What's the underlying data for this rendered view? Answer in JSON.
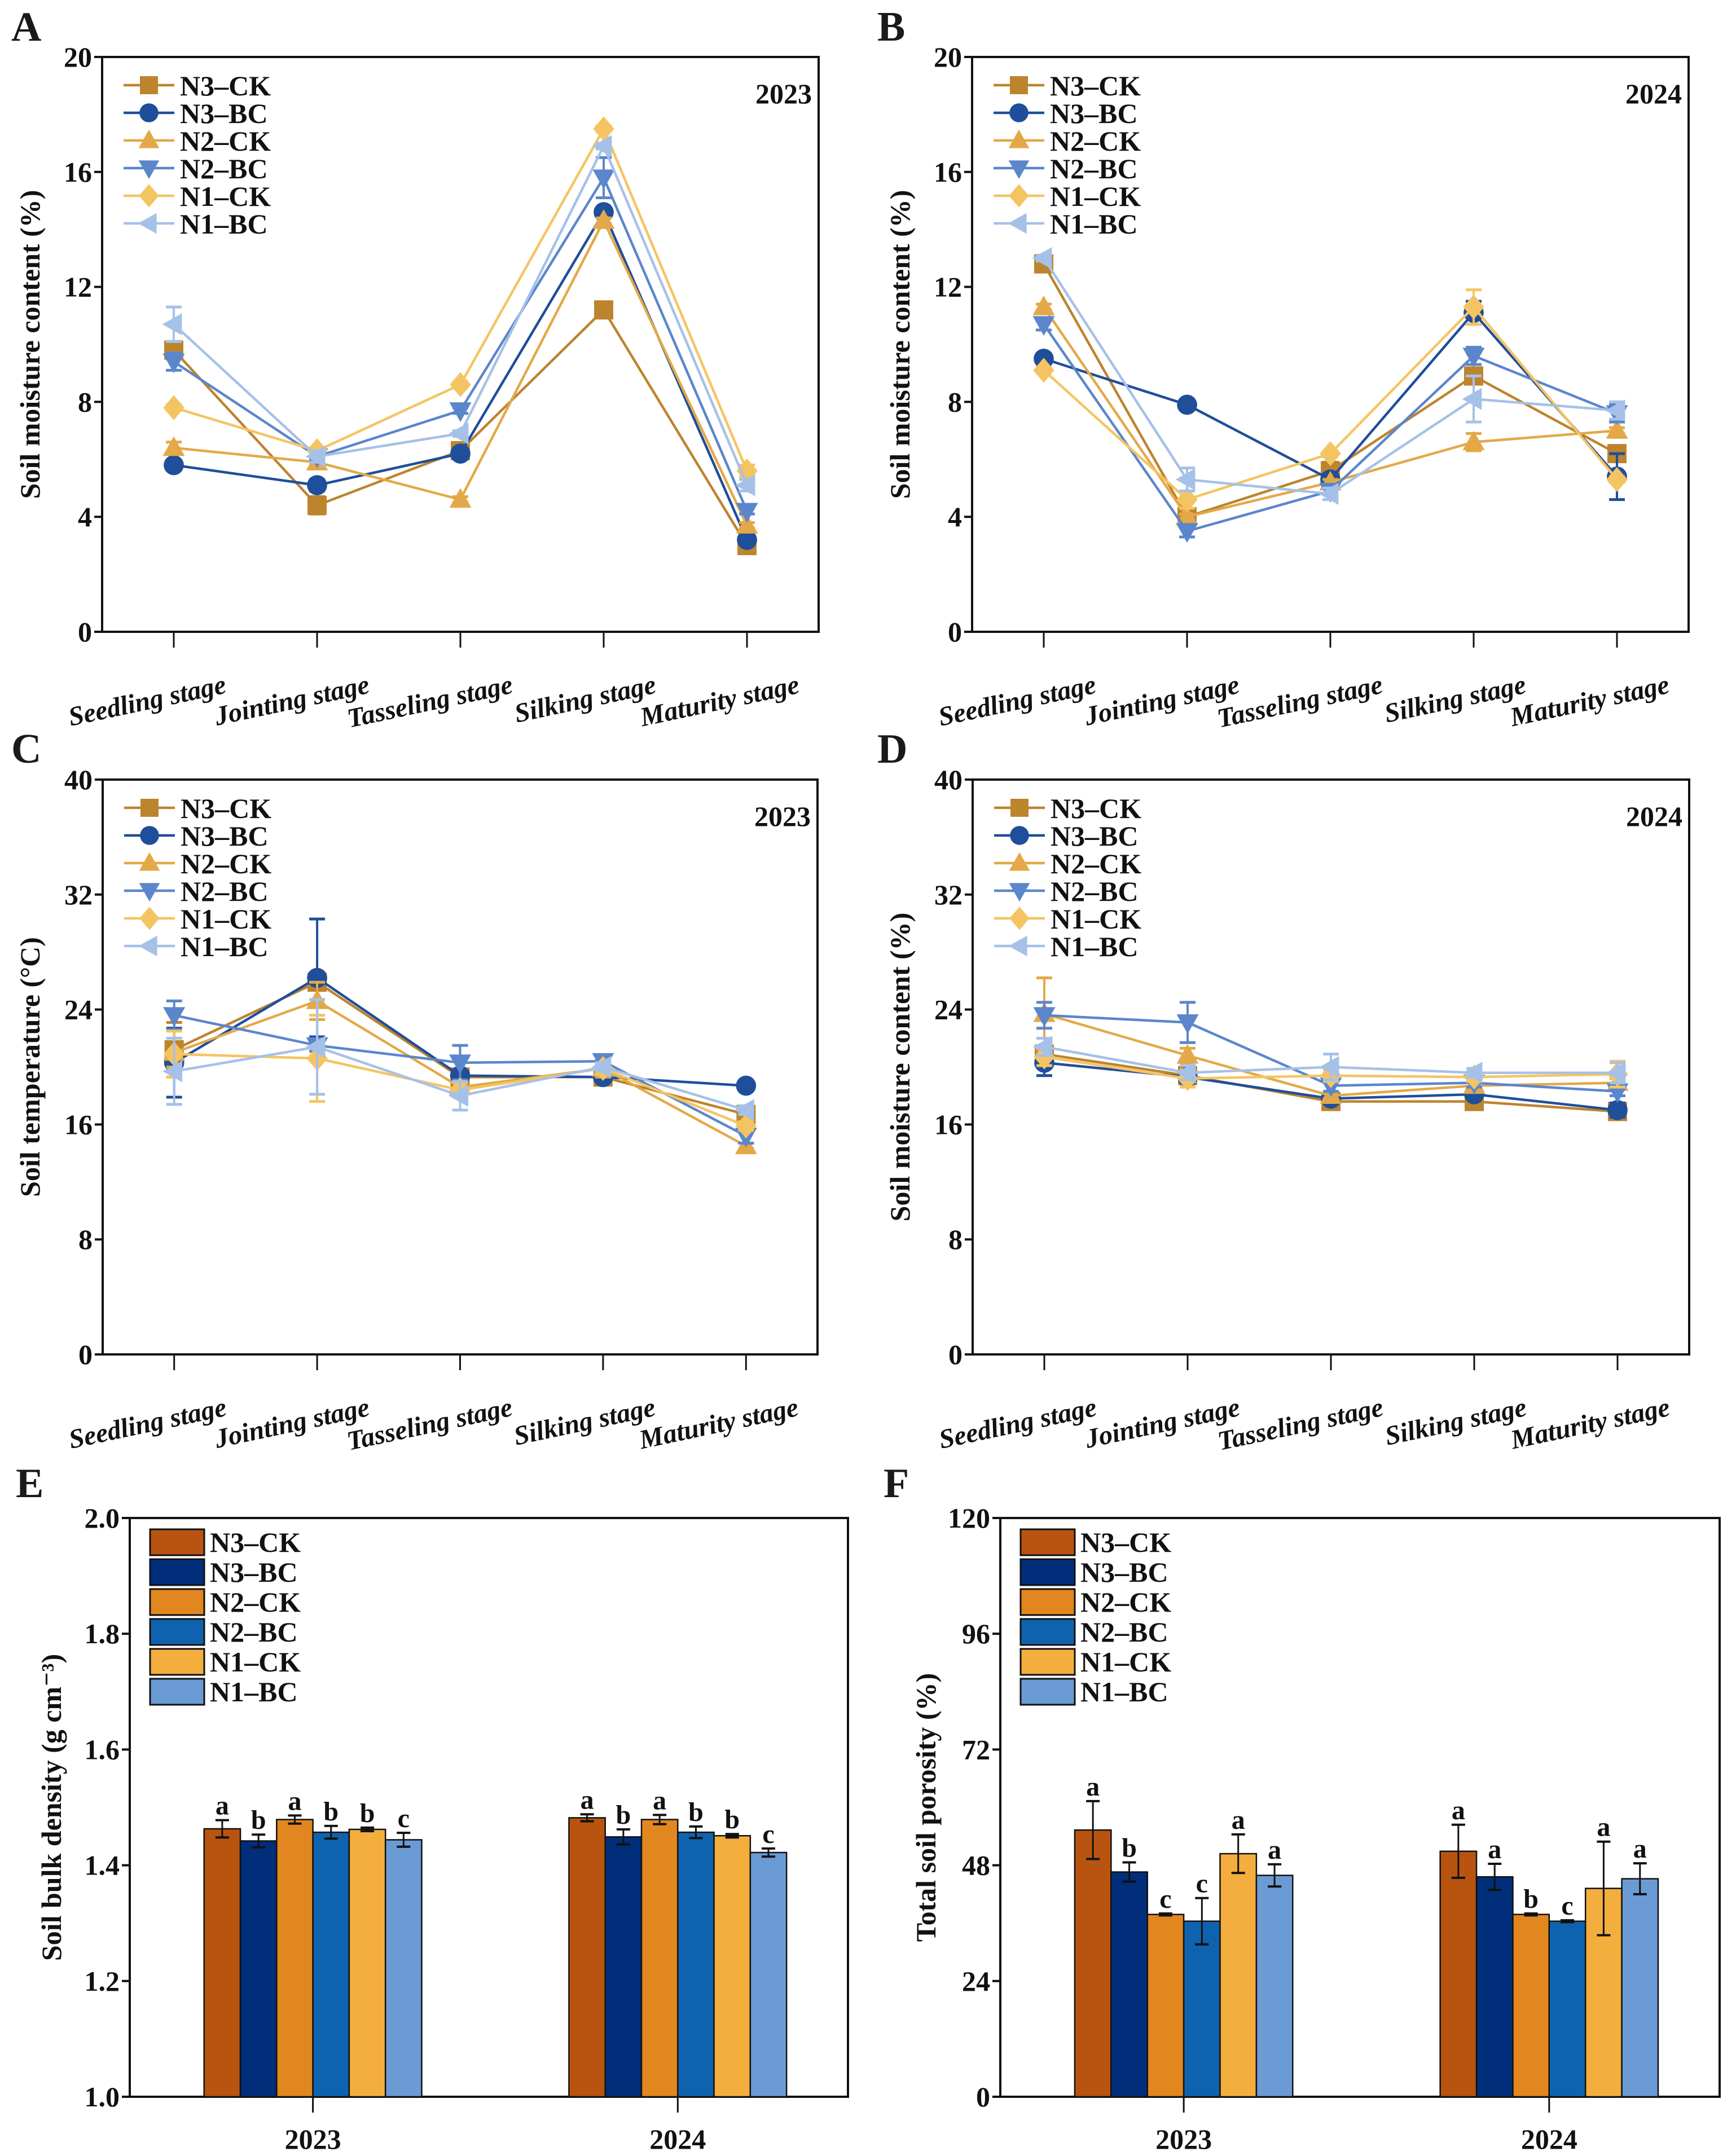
{
  "figure": {
    "series_names": [
      "N3–CK",
      "N3–BC",
      "N2–CK",
      "N2–BC",
      "N1–CK",
      "N1–BC"
    ],
    "line_colors": [
      "#BD842E",
      "#1F4E9A",
      "#E3A948",
      "#5B86CC",
      "#F5C462",
      "#A6C1E8"
    ],
    "line_markers": [
      "square",
      "circle",
      "triangle-up",
      "triangle-down",
      "diamond",
      "triangle-left"
    ],
    "bar_colors": [
      "#B85410",
      "#002E7A",
      "#E2871F",
      "#0F63AE",
      "#F4AE3E",
      "#6B9BD4"
    ]
  },
  "chart_data": [
    {
      "panel": "A",
      "type": "line",
      "annotation": "2023",
      "ylabel": "Soil moisture content (%)",
      "ylim": [
        0,
        20
      ],
      "yticks": [
        0,
        4,
        8,
        12,
        16,
        20
      ],
      "categories": [
        "Seedling stage",
        "Jointing stage",
        "Tasseling stage",
        "Silking stage",
        "Maturity stage"
      ],
      "legend": "top-left",
      "series": [
        {
          "name": "N3–CK",
          "values": [
            9.8,
            4.4,
            6.3,
            11.2,
            3.0
          ],
          "errors": [
            0.3,
            0.3,
            0.2,
            0.2,
            0.1
          ]
        },
        {
          "name": "N3–BC",
          "values": [
            5.8,
            5.1,
            6.2,
            14.6,
            3.2
          ],
          "errors": [
            0.1,
            0.2,
            0.1,
            0.1,
            0.1
          ]
        },
        {
          "name": "N2–CK",
          "values": [
            6.4,
            5.9,
            4.6,
            14.3,
            3.7
          ],
          "errors": [
            0.2,
            0.1,
            0.1,
            0.1,
            0.1
          ]
        },
        {
          "name": "N2–BC",
          "values": [
            9.4,
            6.1,
            7.7,
            15.8,
            4.2
          ],
          "errors": [
            0.3,
            0.1,
            0.1,
            0.7,
            0.1
          ]
        },
        {
          "name": "N1–CK",
          "values": [
            7.8,
            6.3,
            8.6,
            17.5,
            5.6
          ],
          "errors": [
            0.1,
            0.1,
            0.1,
            0.1,
            0.2
          ]
        },
        {
          "name": "N1–BC",
          "values": [
            10.7,
            6.1,
            6.9,
            16.9,
            5.1
          ],
          "errors": [
            0.6,
            0.2,
            0.1,
            0.1,
            0.2
          ]
        }
      ]
    },
    {
      "panel": "B",
      "type": "line",
      "annotation": "2024",
      "ylabel": "Soil moisture content (%)",
      "ylim": [
        0,
        20
      ],
      "yticks": [
        0,
        4,
        8,
        12,
        16,
        20
      ],
      "categories": [
        "Seedling stage",
        "Jointing stage",
        "Tasseling stage",
        "Silking stage",
        "Maturity stage"
      ],
      "legend": "top-left",
      "series": [
        {
          "name": "N3–CK",
          "values": [
            12.8,
            4.0,
            5.6,
            8.9,
            6.2
          ],
          "errors": [
            0.1,
            0.2,
            0.3,
            0.2,
            0.2
          ]
        },
        {
          "name": "N3–BC",
          "values": [
            9.5,
            7.9,
            5.3,
            11.1,
            5.4
          ],
          "errors": [
            0.1,
            0.1,
            0.2,
            0.4,
            0.8
          ]
        },
        {
          "name": "N2–CK",
          "values": [
            11.3,
            4.0,
            5.2,
            6.6,
            7.0
          ],
          "errors": [
            0.1,
            0.1,
            0.1,
            0.3,
            0.1
          ]
        },
        {
          "name": "N2–BC",
          "values": [
            10.7,
            3.5,
            4.9,
            9.6,
            7.6
          ],
          "errors": [
            0.2,
            0.2,
            0.1,
            0.3,
            0.3
          ]
        },
        {
          "name": "N1–CK",
          "values": [
            9.1,
            4.6,
            6.2,
            11.3,
            5.3
          ],
          "errors": [
            0.1,
            0.3,
            0.1,
            0.6,
            0.1
          ]
        },
        {
          "name": "N1–BC",
          "values": [
            13.0,
            5.3,
            4.8,
            8.1,
            7.7
          ],
          "errors": [
            0.1,
            0.4,
            0.2,
            0.8,
            0.3
          ]
        }
      ]
    },
    {
      "panel": "C",
      "type": "line",
      "annotation": "2023",
      "ylabel": "Soil temperature (°C)",
      "ylim": [
        0,
        40
      ],
      "yticks": [
        0,
        8,
        16,
        24,
        32,
        40
      ],
      "categories": [
        "Seedling stage",
        "Jointing stage",
        "Tasseling stage",
        "Silking stage",
        "Maturity stage"
      ],
      "legend": "top-left",
      "series": [
        {
          "name": "N3–CK",
          "values": [
            21.2,
            25.9,
            19.3,
            19.3,
            16.7
          ],
          "errors": [
            1.9,
            0.3,
            0.3,
            0.3,
            0.3
          ]
        },
        {
          "name": "N3–BC",
          "values": [
            20.3,
            26.2,
            19.4,
            19.3,
            18.7
          ],
          "errors": [
            2.4,
            4.1,
            0.3,
            0.3,
            0.3
          ]
        },
        {
          "name": "N2–CK",
          "values": [
            21.0,
            24.6,
            18.6,
            19.9,
            14.5
          ],
          "errors": [
            1.0,
            1.3,
            0.5,
            0.6,
            0.2
          ]
        },
        {
          "name": "N2–BC",
          "values": [
            23.6,
            21.5,
            20.3,
            20.4,
            15.2
          ],
          "errors": [
            1.0,
            0.4,
            1.2,
            0.3,
            0.5
          ]
        },
        {
          "name": "N1–CK",
          "values": [
            20.9,
            20.6,
            18.4,
            19.9,
            15.9
          ],
          "errors": [
            1.6,
            3.0,
            0.5,
            0.4,
            0.3
          ]
        },
        {
          "name": "N1–BC",
          "values": [
            19.7,
            21.4,
            18.0,
            20.0,
            17.0
          ],
          "errors": [
            2.3,
            3.3,
            1.0,
            0.3,
            0.3
          ]
        }
      ]
    },
    {
      "panel": "D",
      "type": "line",
      "annotation": "2024",
      "ylabel": "Soil moisture content (%)",
      "ylim": [
        0,
        40
      ],
      "yticks": [
        0,
        8,
        16,
        24,
        32,
        40
      ],
      "categories": [
        "Seedling stage",
        "Jointing stage",
        "Tasseling stage",
        "Silking stage",
        "Maturity stage"
      ],
      "legend": "top-left",
      "series": [
        {
          "name": "N3–CK",
          "values": [
            20.9,
            19.4,
            17.6,
            17.6,
            16.9
          ],
          "errors": [
            0.5,
            0.3,
            0.3,
            0.3,
            0.3
          ]
        },
        {
          "name": "N3–BC",
          "values": [
            20.3,
            19.3,
            17.8,
            18.1,
            17.0
          ],
          "errors": [
            0.9,
            0.4,
            0.3,
            0.3,
            0.5
          ]
        },
        {
          "name": "N2–CK",
          "values": [
            23.7,
            20.8,
            18.0,
            18.7,
            18.9
          ],
          "errors": [
            2.5,
            0.5,
            0.2,
            0.3,
            0.3
          ]
        },
        {
          "name": "N2–BC",
          "values": [
            23.6,
            23.1,
            18.7,
            18.9,
            18.3
          ],
          "errors": [
            0.9,
            1.4,
            0.4,
            0.3,
            0.3
          ]
        },
        {
          "name": "N1–CK",
          "values": [
            20.7,
            19.2,
            19.4,
            19.3,
            19.5
          ],
          "errors": [
            0.6,
            0.6,
            0.4,
            0.3,
            0.9
          ]
        },
        {
          "name": "N1–BC",
          "values": [
            21.4,
            19.6,
            20.0,
            19.6,
            19.6
          ],
          "errors": [
            0.6,
            0.5,
            0.9,
            0.3,
            0.7
          ]
        }
      ]
    },
    {
      "panel": "E",
      "type": "bar",
      "ylabel": "Soil bulk density (g cm⁻³)",
      "ylim": [
        1.0,
        2.0
      ],
      "yticks": [
        1.0,
        1.2,
        1.4,
        1.6,
        1.8,
        2.0
      ],
      "ytick_labels": [
        "1.0",
        "1.2",
        "1.4",
        "1.6",
        "1.8",
        "2.0"
      ],
      "categories": [
        "2023",
        "2024"
      ],
      "legend": "top-left",
      "series": [
        {
          "name": "N3–CK",
          "values": [
            1.463,
            1.482
          ],
          "errors": [
            0.015,
            0.006
          ],
          "letters": [
            "a",
            "a"
          ]
        },
        {
          "name": "N3–BC",
          "values": [
            1.442,
            1.449
          ],
          "errors": [
            0.011,
            0.013
          ],
          "letters": [
            "b",
            "b"
          ]
        },
        {
          "name": "N2–CK",
          "values": [
            1.479,
            1.479
          ],
          "errors": [
            0.007,
            0.008
          ],
          "letters": [
            "a",
            "a"
          ]
        },
        {
          "name": "N2–BC",
          "values": [
            1.457,
            1.457
          ],
          "errors": [
            0.011,
            0.01
          ],
          "letters": [
            "b",
            "b"
          ]
        },
        {
          "name": "N1–CK",
          "values": [
            1.462,
            1.451
          ],
          "errors": [
            0.003,
            0.003
          ],
          "letters": [
            "b",
            "b"
          ]
        },
        {
          "name": "N1–BC",
          "values": [
            1.444,
            1.422
          ],
          "errors": [
            0.012,
            0.007
          ],
          "letters": [
            "c",
            "c"
          ]
        }
      ]
    },
    {
      "panel": "F",
      "type": "bar",
      "ylabel": "Total soil porosity (%)",
      "ylim": [
        0,
        120
      ],
      "yticks": [
        0,
        24,
        48,
        72,
        96,
        120
      ],
      "ytick_labels": [
        "0",
        "24",
        "48",
        "72",
        "96",
        "120"
      ],
      "categories": [
        "2023",
        "2024"
      ],
      "legend": "top-left",
      "series": [
        {
          "name": "N3–CK",
          "values": [
            55.3,
            50.9
          ],
          "errors": [
            6.0,
            5.5
          ],
          "letters": [
            "a",
            "a"
          ]
        },
        {
          "name": "N3–BC",
          "values": [
            46.6,
            45.6
          ],
          "errors": [
            2.0,
            2.7
          ],
          "letters": [
            "b",
            "a"
          ]
        },
        {
          "name": "N2–CK",
          "values": [
            37.8,
            37.8
          ],
          "errors": [
            0.2,
            0.2
          ],
          "letters": [
            "c",
            "b"
          ]
        },
        {
          "name": "N2–BC",
          "values": [
            36.4,
            36.4
          ],
          "errors": [
            4.8,
            0.2
          ],
          "letters": [
            "c",
            "c"
          ]
        },
        {
          "name": "N1–CK",
          "values": [
            50.4,
            43.2
          ],
          "errors": [
            4.0,
            9.7
          ],
          "letters": [
            "a",
            "a"
          ]
        },
        {
          "name": "N1–BC",
          "values": [
            45.9,
            45.2
          ],
          "errors": [
            2.3,
            3.2
          ],
          "letters": [
            "a",
            "a"
          ]
        }
      ]
    }
  ]
}
